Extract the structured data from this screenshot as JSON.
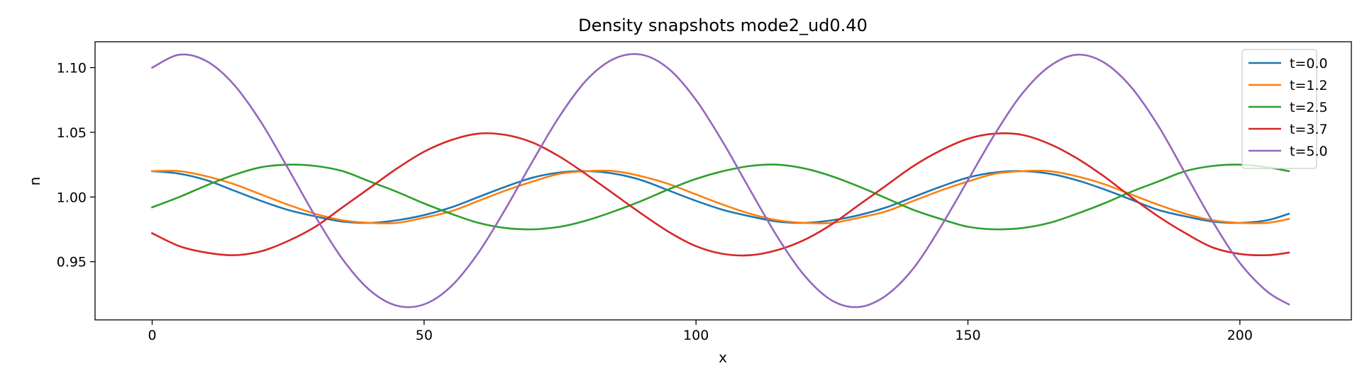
{
  "chart_data": {
    "type": "line",
    "title": "Density snapshots  mode2_ud0.40",
    "xlabel": "x",
    "ylabel": "n",
    "xlim": [
      -10.5,
      220.5
    ],
    "ylim": [
      0.905,
      1.12
    ],
    "xticks": [
      0,
      50,
      100,
      150,
      200
    ],
    "xtick_labels": [
      "0",
      "50",
      "100",
      "150",
      "200"
    ],
    "yticks": [
      0.95,
      1.0,
      1.05,
      1.1
    ],
    "ytick_labels": [
      "0.95",
      "1.00",
      "1.05",
      "1.10"
    ],
    "grid": false,
    "legend_position": "top-right",
    "x": [
      0,
      5,
      10,
      15,
      20,
      25,
      30,
      35,
      40,
      45,
      50,
      55,
      60,
      65,
      70,
      75,
      80,
      85,
      90,
      95,
      100,
      105,
      110,
      115,
      120,
      125,
      130,
      135,
      140,
      145,
      150,
      155,
      160,
      165,
      170,
      175,
      180,
      185,
      190,
      195,
      200,
      205,
      209
    ],
    "series": [
      {
        "name": "t=0.0",
        "color": "#1f77b4",
        "values": [
          1.02,
          1.018,
          1.013,
          1.005,
          0.997,
          0.99,
          0.985,
          0.981,
          0.98,
          0.982,
          0.986,
          0.992,
          1.0,
          1.008,
          1.015,
          1.019,
          1.02,
          1.018,
          1.013,
          1.005,
          0.997,
          0.99,
          0.985,
          0.981,
          0.98,
          0.982,
          0.986,
          0.992,
          1.0,
          1.008,
          1.015,
          1.019,
          1.02,
          1.018,
          1.013,
          1.006,
          0.998,
          0.99,
          0.985,
          0.981,
          0.98,
          0.982,
          0.987
        ]
      },
      {
        "name": "t=1.2",
        "color": "#ff7f0e",
        "values": [
          1.02,
          1.02,
          1.016,
          1.01,
          1.002,
          0.994,
          0.987,
          0.982,
          0.98,
          0.98,
          0.984,
          0.989,
          0.997,
          1.005,
          1.012,
          1.018,
          1.02,
          1.02,
          1.016,
          1.01,
          1.002,
          0.994,
          0.987,
          0.982,
          0.98,
          0.98,
          0.984,
          0.989,
          0.997,
          1.005,
          1.012,
          1.018,
          1.02,
          1.02,
          1.016,
          1.01,
          1.002,
          0.994,
          0.987,
          0.982,
          0.98,
          0.98,
          0.983
        ]
      },
      {
        "name": "t=2.5",
        "color": "#2ca02c",
        "values": [
          0.992,
          1.0,
          1.009,
          1.017,
          1.023,
          1.025,
          1.024,
          1.02,
          1.012,
          1.004,
          0.995,
          0.987,
          0.98,
          0.976,
          0.975,
          0.977,
          0.982,
          0.989,
          0.997,
          1.006,
          1.014,
          1.02,
          1.024,
          1.025,
          1.022,
          1.016,
          1.008,
          0.999,
          0.99,
          0.983,
          0.977,
          0.975,
          0.976,
          0.98,
          0.987,
          0.995,
          1.004,
          1.012,
          1.02,
          1.024,
          1.025,
          1.023,
          1.02
        ]
      },
      {
        "name": "t=3.7",
        "color": "#d62728",
        "values": [
          0.972,
          0.962,
          0.957,
          0.955,
          0.958,
          0.966,
          0.977,
          0.992,
          1.007,
          1.022,
          1.035,
          1.044,
          1.049,
          1.048,
          1.042,
          1.031,
          1.017,
          1.002,
          0.987,
          0.973,
          0.962,
          0.956,
          0.955,
          0.959,
          0.967,
          0.979,
          0.994,
          1.009,
          1.024,
          1.036,
          1.045,
          1.049,
          1.048,
          1.041,
          1.03,
          1.016,
          1.0,
          0.985,
          0.972,
          0.961,
          0.956,
          0.955,
          0.957
        ]
      },
      {
        "name": "t=5.0",
        "color": "#9467bd",
        "values": [
          1.1,
          1.11,
          1.105,
          1.087,
          1.058,
          1.022,
          0.985,
          0.952,
          0.928,
          0.916,
          0.917,
          0.931,
          0.957,
          0.991,
          1.028,
          1.063,
          1.091,
          1.107,
          1.11,
          1.099,
          1.075,
          1.042,
          1.005,
          0.969,
          0.939,
          0.92,
          0.915,
          0.924,
          0.945,
          0.977,
          1.013,
          1.049,
          1.08,
          1.101,
          1.11,
          1.104,
          1.085,
          1.055,
          1.018,
          0.981,
          0.949,
          0.927,
          0.917
        ]
      }
    ]
  }
}
